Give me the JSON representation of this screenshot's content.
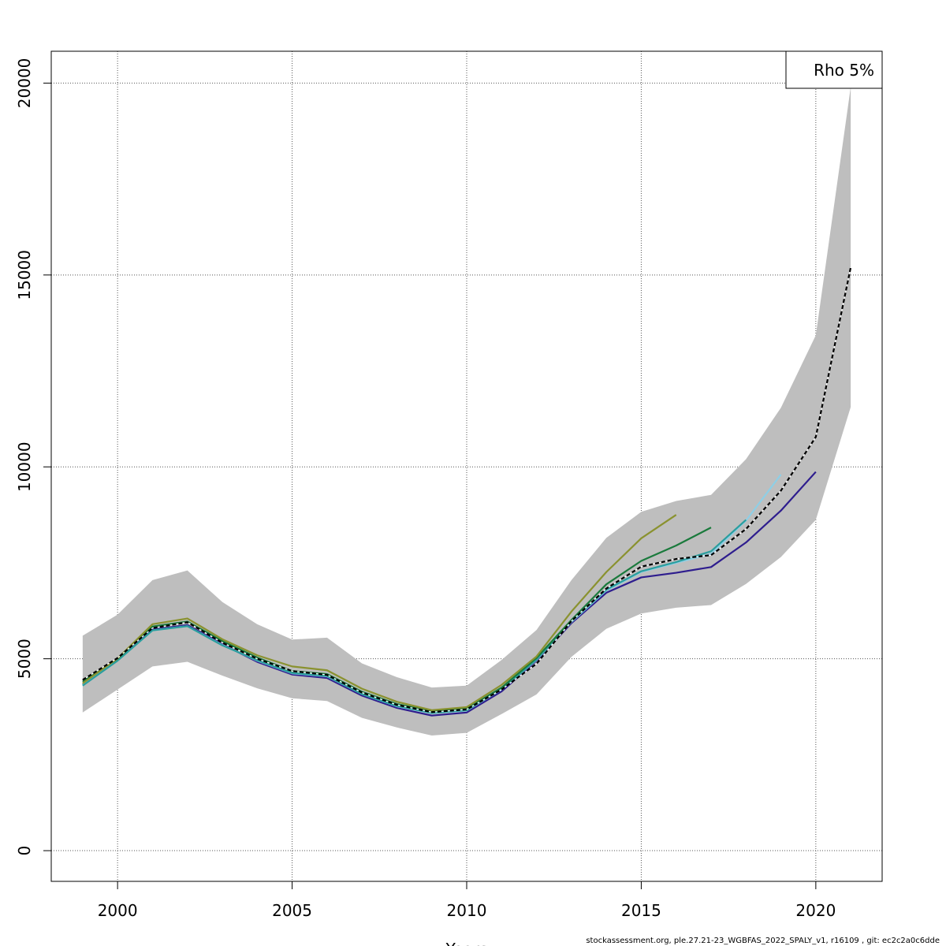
{
  "chart_data": {
    "type": "line",
    "title": "",
    "xlabel": "Years",
    "ylabel": "",
    "xlim": [
      1998.1,
      2021.9
    ],
    "ylim": [
      -800,
      20830
    ],
    "x_ticks": [
      2000,
      2005,
      2010,
      2015,
      2020
    ],
    "y_ticks": [
      0,
      5000,
      10000,
      15000,
      20000
    ],
    "grid": true,
    "legend": {
      "position": "top-right",
      "text": "Rho 5%"
    },
    "confidence_band": {
      "color": "#bebebe",
      "x": [
        1999,
        2000,
        2001,
        2002,
        2003,
        2004,
        2005,
        2006,
        2007,
        2008,
        2009,
        2010,
        2011,
        2012,
        2013,
        2014,
        2015,
        2016,
        2017,
        2018,
        2019,
        2020,
        2021
      ],
      "upper": [
        5600,
        6150,
        7050,
        7300,
        6480,
        5900,
        5500,
        5550,
        4880,
        4520,
        4250,
        4300,
        4970,
        5750,
        7050,
        8150,
        8830,
        9110,
        9270,
        10200,
        11540,
        13430,
        19900
      ],
      "lower": [
        3600,
        4200,
        4800,
        4920,
        4560,
        4230,
        3970,
        3900,
        3460,
        3210,
        3000,
        3070,
        3560,
        4070,
        5050,
        5780,
        6180,
        6330,
        6400,
        6950,
        7650,
        8620,
        11560
      ]
    },
    "series": [
      {
        "color": "#000000",
        "style": "dashed",
        "x": [
          1999,
          2000,
          2001,
          2002,
          2003,
          2004,
          2005,
          2006,
          2007,
          2008,
          2009,
          2010,
          2011,
          2012,
          2013,
          2014,
          2015,
          2016,
          2017,
          2018,
          2019,
          2020,
          2021
        ],
        "values": [
          4450,
          5020,
          5800,
          5950,
          5420,
          5000,
          4680,
          4580,
          4120,
          3800,
          3610,
          3680,
          4200,
          4870,
          5980,
          6830,
          7400,
          7600,
          7700,
          8380,
          9380,
          10780,
          15200
        ]
      },
      {
        "color": "#2e1d8e",
        "x": [
          1999,
          2000,
          2001,
          2002,
          2003,
          2004,
          2005,
          2006,
          2007,
          2008,
          2009,
          2010,
          2011,
          2012,
          2013,
          2014,
          2015,
          2016,
          2017,
          2018,
          2019,
          2020
        ],
        "values": [
          4330,
          4980,
          5760,
          5880,
          5380,
          4920,
          4590,
          4500,
          4040,
          3720,
          3520,
          3600,
          4150,
          4950,
          5930,
          6720,
          7120,
          7240,
          7390,
          8030,
          8860,
          9870
        ]
      },
      {
        "color": "#8ecfe6",
        "x": [
          1999,
          2000,
          2001,
          2002,
          2003,
          2004,
          2005,
          2006,
          2007,
          2008,
          2009,
          2010,
          2011,
          2012,
          2013,
          2014,
          2015,
          2016,
          2017,
          2018,
          2019
        ],
        "values": [
          4320,
          4960,
          5740,
          5850,
          5360,
          4950,
          4620,
          4540,
          4080,
          3760,
          3580,
          3650,
          4200,
          4970,
          5960,
          6780,
          7260,
          7500,
          7730,
          8600,
          9800
        ]
      },
      {
        "color": "#2a9e9e",
        "x": [
          1999,
          2000,
          2001,
          2002,
          2003,
          2004,
          2005,
          2006,
          2007,
          2008,
          2009,
          2010,
          2011,
          2012,
          2013,
          2014,
          2015,
          2016,
          2017,
          2018
        ],
        "values": [
          4300,
          4950,
          5740,
          5850,
          5350,
          4960,
          4630,
          4550,
          4080,
          3770,
          3590,
          3660,
          4210,
          4980,
          5980,
          6800,
          7280,
          7520,
          7800,
          8620
        ]
      },
      {
        "color": "#1a7a3c",
        "x": [
          1999,
          2000,
          2001,
          2002,
          2003,
          2004,
          2005,
          2006,
          2007,
          2008,
          2009,
          2010,
          2011,
          2012,
          2013,
          2014,
          2015,
          2016,
          2017
        ],
        "values": [
          4400,
          5000,
          5840,
          5970,
          5460,
          5030,
          4680,
          4600,
          4140,
          3820,
          3630,
          3700,
          4250,
          5020,
          6010,
          6940,
          7550,
          7950,
          8420
        ]
      },
      {
        "color": "#8a922f",
        "x": [
          1999,
          2000,
          2001,
          2002,
          2003,
          2004,
          2005,
          2006,
          2007,
          2008,
          2009,
          2010,
          2011,
          2012,
          2013,
          2014,
          2015,
          2016
        ],
        "values": [
          4360,
          5010,
          5900,
          6050,
          5510,
          5090,
          4800,
          4700,
          4220,
          3880,
          3660,
          3740,
          4320,
          5060,
          6230,
          7260,
          8140,
          8750
        ]
      }
    ]
  },
  "footer": "stockassessment.org, ple.27.21-23_WGBFAS_2022_SPALY_v1, r16109 , git: ec2c2a0c6dde"
}
